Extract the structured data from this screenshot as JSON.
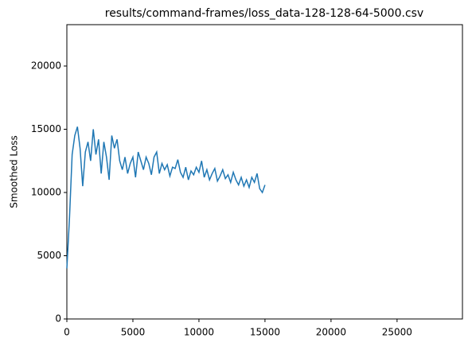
{
  "chart_data": {
    "type": "line",
    "title": "results/command-frames/loss_data-128-128-64-5000.csv",
    "ylabel": "Smoothed Loss",
    "x": [
      0,
      200,
      400,
      600,
      800,
      1000,
      1200,
      1400,
      1600,
      1800,
      2000,
      2200,
      2400,
      2600,
      2800,
      3000,
      3200,
      3400,
      3600,
      3800,
      4000,
      4200,
      4400,
      4600,
      4800,
      5000,
      5200,
      5400,
      5600,
      5800,
      6000,
      6200,
      6400,
      6600,
      6800,
      7000,
      7200,
      7400,
      7600,
      7800,
      8000,
      8200,
      8400,
      8600,
      8800,
      9000,
      9200,
      9400,
      9600,
      9800,
      10000,
      10200,
      10400,
      10600,
      10800,
      11000,
      11200,
      11400,
      11600,
      11800,
      12000,
      12200,
      12400,
      12600,
      12800,
      13000,
      13200,
      13400,
      13600,
      13800,
      14000,
      14200,
      14400,
      14600,
      14800,
      15000
    ],
    "values": [
      4000,
      8000,
      13000,
      14500,
      15200,
      13500,
      10500,
      13200,
      14000,
      12500,
      15000,
      13000,
      14200,
      11500,
      14000,
      12800,
      11000,
      14500,
      13500,
      14200,
      12500,
      11800,
      12800,
      11500,
      12300,
      12800,
      11200,
      13200,
      12500,
      11800,
      12800,
      12300,
      11400,
      12800,
      13200,
      11500,
      12300,
      11800,
      12200,
      11300,
      12000,
      11900,
      12600,
      11600,
      11200,
      12000,
      11000,
      11700,
      11400,
      12000,
      11600,
      12500,
      11200,
      11800,
      11000,
      11500,
      11900,
      10900,
      11300,
      11800,
      11100,
      11400,
      10800,
      11600,
      11000,
      10600,
      11200,
      10500,
      11000,
      10400,
      11200,
      10800,
      11500,
      10300,
      10000,
      10600
    ],
    "color": "#1f77b4",
    "xlim": [
      0,
      29950
    ],
    "ylim": [
      0,
      23270
    ],
    "xticks": [
      0,
      5000,
      10000,
      15000,
      20000,
      25000
    ],
    "yticks": [
      0,
      5000,
      10000,
      15000,
      20000
    ],
    "grid": false
  }
}
